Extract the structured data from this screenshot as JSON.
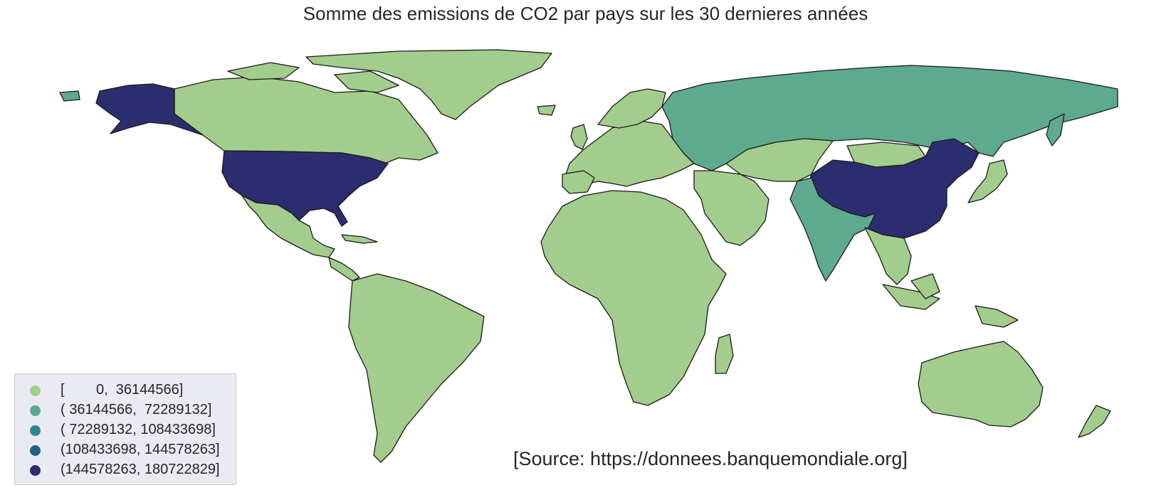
{
  "title": "Somme des emissions de CO2 par pays sur les 30 dernieres années",
  "source": "[Source: https://donnees.banquemondiale.org]",
  "legend": [
    {
      "label": "[        0,  36144566]",
      "color": "#a3cd8d"
    },
    {
      "label": "( 36144566,  72289132]",
      "color": "#5eaa8f"
    },
    {
      "label": "( 72289132, 108433698]",
      "color": "#2e868d"
    },
    {
      "label": "(108433698, 144578263]",
      "color": "#225e86"
    },
    {
      "label": "(144578263, 180722829]",
      "color": "#2b2d6e"
    }
  ],
  "chart_data": {
    "type": "choropleth",
    "classes": [
      {
        "range": "[0, 36144566]",
        "color": "#a3cd8d"
      },
      {
        "range": "(36144566, 72289132]",
        "color": "#5eaa8f"
      },
      {
        "range": "(72289132, 108433698]",
        "color": "#2e868d"
      },
      {
        "range": "(108433698, 144578263]",
        "color": "#225e86"
      },
      {
        "range": "(144578263, 180722829]",
        "color": "#2b2d6e"
      }
    ],
    "highlighted": [
      {
        "region": "United States",
        "class": 4
      },
      {
        "region": "China",
        "class": 4
      },
      {
        "region": "Russia",
        "class": 1
      },
      {
        "region": "India",
        "class": 1
      }
    ],
    "default_class": 0,
    "legend_position": "lower-left"
  }
}
